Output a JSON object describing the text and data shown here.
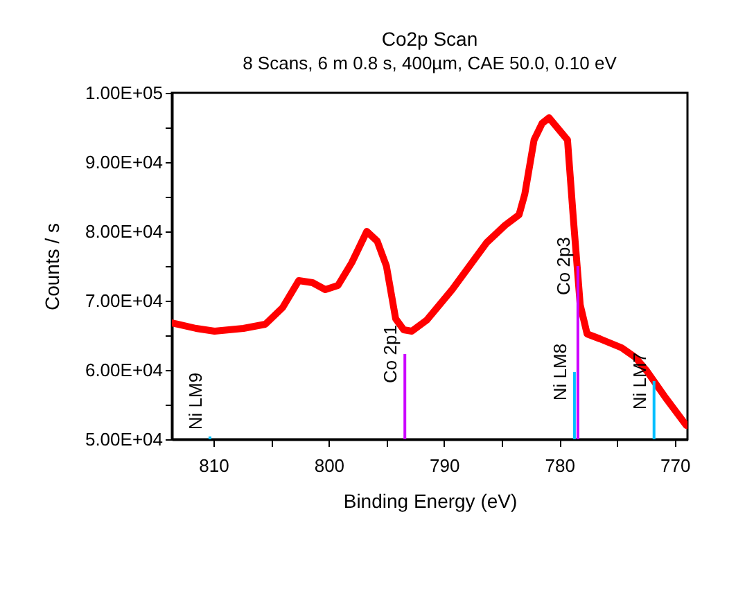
{
  "chart_data": {
    "type": "line",
    "title": "Co2p Scan",
    "subtitle": "8 Scans,  6 m 0.8 s,  400µm,  CAE 50.0,  0.10 eV",
    "xlabel": "Binding Energy (eV)",
    "ylabel": "Counts / s",
    "xlim": [
      813.6,
      768.9
    ],
    "ylim": [
      50000,
      100000
    ],
    "xticks": [
      810,
      {
        "value": 805,
        "label": null
      },
      800,
      {
        "value": 795,
        "label": null
      },
      790,
      {
        "value": 785,
        "label": null
      },
      780,
      {
        "value": 775,
        "label": null
      },
      770
    ],
    "yticks": [
      {
        "value": 50000,
        "label": "5.00E+04"
      },
      {
        "value": 55000,
        "label": null
      },
      {
        "value": 60000,
        "label": "6.00E+04"
      },
      {
        "value": 65000,
        "label": null
      },
      {
        "value": 70000,
        "label": "7.00E+04"
      },
      {
        "value": 75000,
        "label": null
      },
      {
        "value": 80000,
        "label": "8.00E+04"
      },
      {
        "value": 85000,
        "label": null
      },
      {
        "value": 90000,
        "label": "9.00E+04"
      },
      {
        "value": 95000,
        "label": null
      },
      {
        "value": 100000,
        "label": "1.00E+05"
      }
    ],
    "grid": false,
    "series": [
      {
        "color": "#ff0000",
        "x": [
          813.6,
          811.5,
          809.9,
          807.4,
          805.5,
          804,
          802.6,
          801.4,
          800.3,
          799.2,
          798,
          796.7,
          795.8,
          795,
          794.2,
          793.5,
          792.8,
          791.5,
          789.3,
          787.8,
          786.3,
          784.7,
          783.5,
          783,
          782.2,
          781.5,
          780.9,
          780.3,
          779.3,
          778.8,
          778.2,
          777.6,
          776.5,
          774.6,
          773.4,
          772.4,
          770.8,
          769
        ],
        "values": [
          66800,
          66000,
          65600,
          66000,
          66600,
          69000,
          72900,
          72600,
          71600,
          72200,
          75500,
          80000,
          78600,
          75000,
          67400,
          65800,
          65600,
          67200,
          71600,
          75000,
          78400,
          80900,
          82400,
          85400,
          93200,
          95600,
          96400,
          95200,
          93200,
          82000,
          69400,
          65200,
          64500,
          63200,
          61800,
          59800,
          56000,
          52000
        ]
      },
      {
        "type": "bar",
        "name": "Ni LM9",
        "color": "#00bfff",
        "x": [
          810.3
        ],
        "values": [
          50400
        ]
      },
      {
        "type": "bar",
        "name": "Co 2p1",
        "color": "#cc00ff",
        "x": [
          793.4
        ],
        "values": [
          62300
        ]
      },
      {
        "type": "bar",
        "name": "Co 2p3",
        "color": "#cc00ff",
        "x": [
          778.4
        ],
        "values": [
          75000
        ]
      },
      {
        "type": "bar",
        "name": "Ni LM8",
        "color": "#00bfff",
        "x": [
          778.7
        ],
        "values": [
          59700
        ]
      },
      {
        "type": "bar",
        "name": "Ni LM7",
        "color": "#00bfff",
        "x": [
          771.8
        ],
        "values": [
          58400
        ]
      }
    ]
  }
}
